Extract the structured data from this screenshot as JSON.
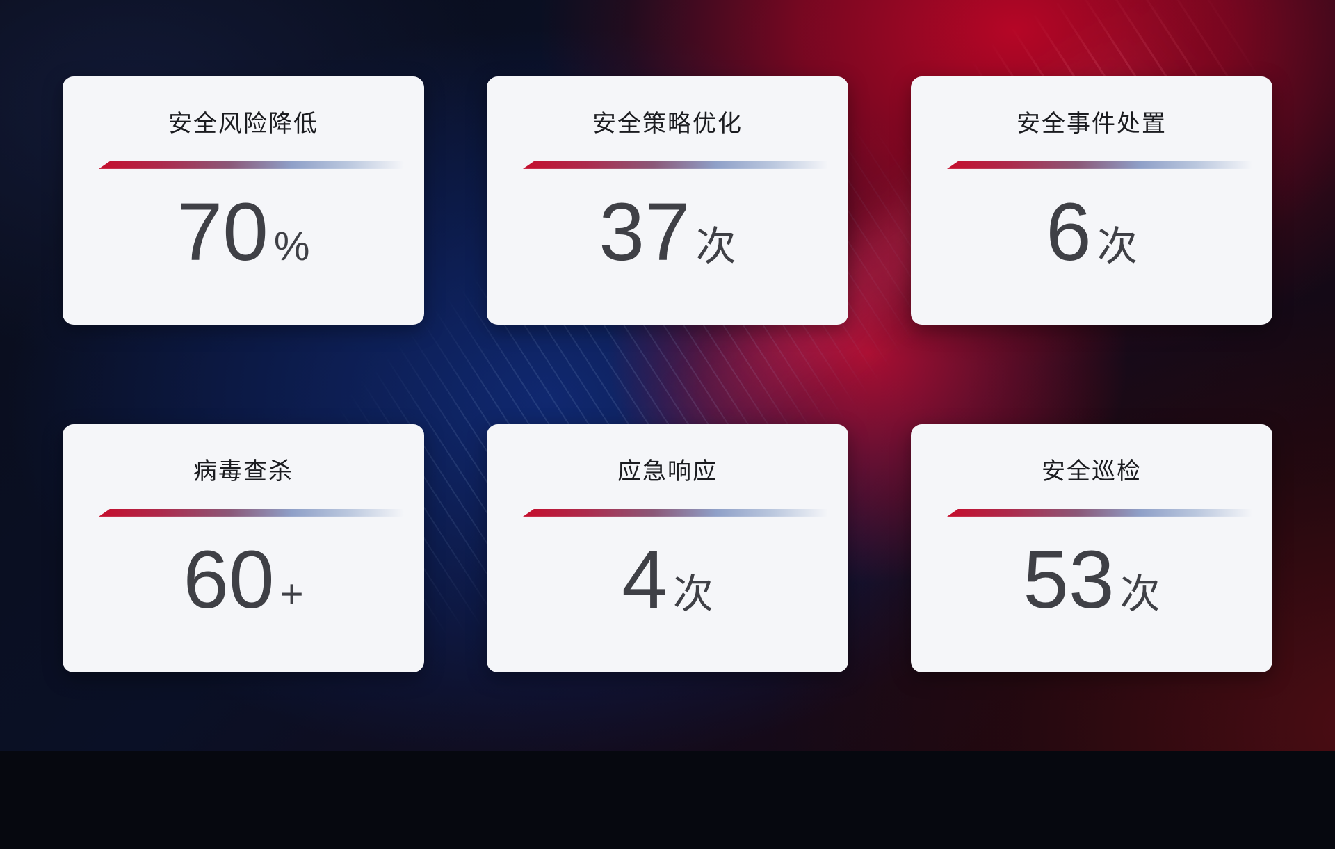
{
  "cards": [
    {
      "title": "安全风险降低",
      "value": "70",
      "unit": "%"
    },
    {
      "title": "安全策略优化",
      "value": "37",
      "unit": "次"
    },
    {
      "title": "安全事件处置",
      "value": "6",
      "unit": "次"
    },
    {
      "title": "病毒查杀",
      "value": "60",
      "unit": "+"
    },
    {
      "title": "应急响应",
      "value": "4",
      "unit": "次"
    },
    {
      "title": "安全巡检",
      "value": "53",
      "unit": "次"
    }
  ],
  "colors": {
    "card_background": "#f5f6f9",
    "title_color": "#1b1c20",
    "number_color": "#3f4046",
    "divider_gradient": [
      "#c50e2d",
      "#8b5878",
      "#8fa0c8",
      "#bac7de"
    ],
    "background_base": "#06080f",
    "background_blue": "#102a76",
    "background_red": "#bc0626",
    "background_maroon": "#350a12"
  }
}
